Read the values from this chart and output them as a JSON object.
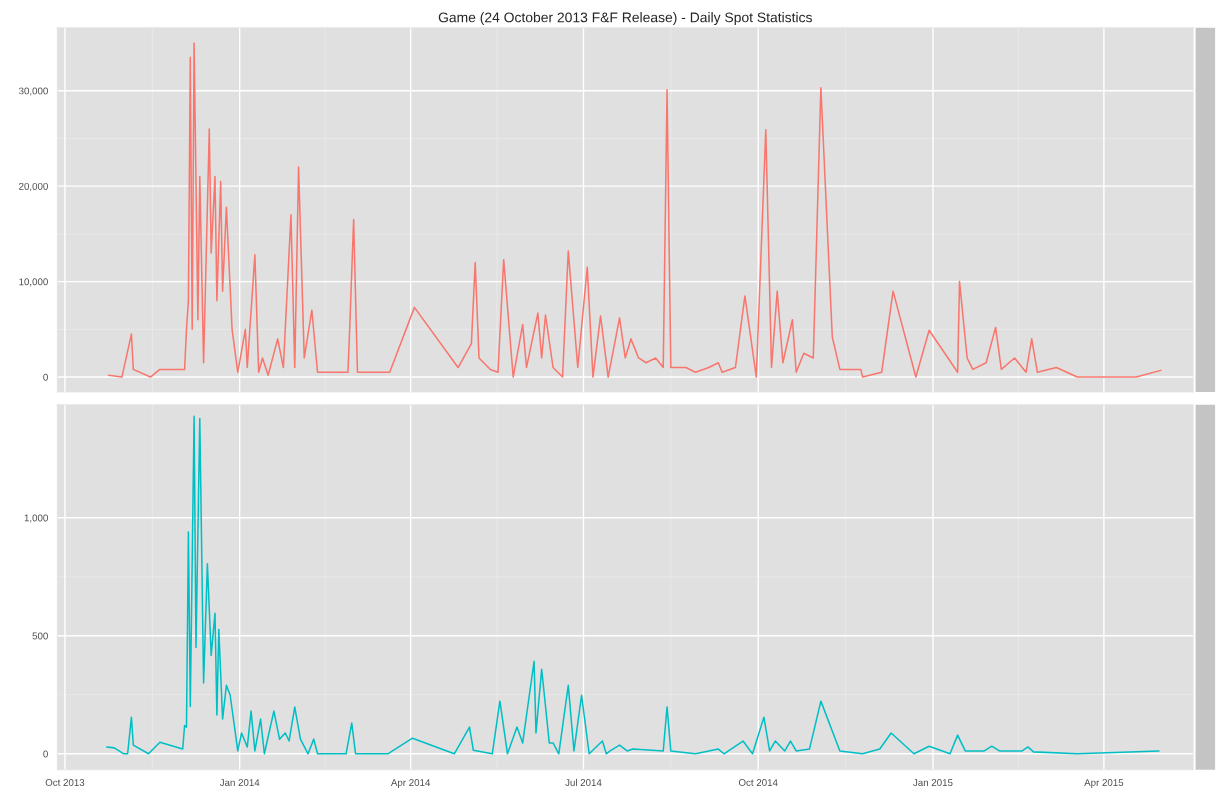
{
  "chart_data": [
    {
      "type": "line",
      "title": "Game (24 October 2013 F&F Release) - Daily Spot Statistics",
      "tick_labels": "y",
      "grid": true,
      "xlim": [
        "2013-09-27",
        "2015-05-18"
      ],
      "xticks": [
        {
          "value": "2013-10-01",
          "label": null
        },
        {
          "value": "2014-01-01",
          "label": null
        },
        {
          "value": "2014-04-01",
          "label": null
        },
        {
          "value": "2014-07-01",
          "label": null
        },
        {
          "value": "2014-10-01",
          "label": null
        },
        {
          "value": "2015-01-01",
          "label": null
        },
        {
          "value": "2015-04-01",
          "label": null
        }
      ],
      "ylim": [
        -1570,
        36600
      ],
      "yticks": [
        0,
        {
          "value": 10000,
          "label": "10,000"
        },
        {
          "value": 20000,
          "label": "20,000"
        },
        {
          "value": 30000,
          "label": "30,000"
        }
      ],
      "series": [
        {
          "color": "#f8766d",
          "x": [
            "2013-10-24",
            "2013-10-31",
            "2013-11-05",
            "2013-11-06",
            "2013-11-15",
            "2013-11-20",
            "2013-12-03",
            "2013-12-04",
            "2013-12-05",
            "2013-12-06",
            "2013-12-07",
            "2013-12-08",
            "2013-12-10",
            "2013-12-11",
            "2013-12-13",
            "2013-12-16",
            "2013-12-17",
            "2013-12-19",
            "2013-12-20",
            "2013-12-22",
            "2013-12-23",
            "2013-12-25",
            "2013-12-28",
            "2013-12-31",
            "2014-01-04",
            "2014-01-05",
            "2014-01-09",
            "2014-01-11",
            "2014-01-13",
            "2014-01-16",
            "2014-01-21",
            "2014-01-24",
            "2014-01-28",
            "2014-01-30",
            "2014-02-01",
            "2014-02-04",
            "2014-02-08",
            "2014-02-11",
            "2014-02-15",
            "2014-02-27",
            "2014-02-28",
            "2014-03-02",
            "2014-03-04",
            "2014-03-21",
            "2014-04-03",
            "2014-04-26",
            "2014-05-03",
            "2014-05-05",
            "2014-05-07",
            "2014-05-13",
            "2014-05-17",
            "2014-05-20",
            "2014-05-25",
            "2014-05-30",
            "2014-06-01",
            "2014-06-07",
            "2014-06-09",
            "2014-06-11",
            "2014-06-15",
            "2014-06-20",
            "2014-06-23",
            "2014-06-28",
            "2014-07-03",
            "2014-07-06",
            "2014-07-10",
            "2014-07-14",
            "2014-07-20",
            "2014-07-23",
            "2014-07-26",
            "2014-07-30",
            "2014-08-03",
            "2014-08-08",
            "2014-08-12",
            "2014-08-14",
            "2014-08-16",
            "2014-08-24",
            "2014-08-29",
            "2014-09-05",
            "2014-09-10",
            "2014-09-12",
            "2014-09-19",
            "2014-09-24",
            "2014-09-30",
            "2014-10-05",
            "2014-10-08",
            "2014-10-11",
            "2014-10-14",
            "2014-10-19",
            "2014-10-21",
            "2014-10-25",
            "2014-10-30",
            "2014-11-03",
            "2014-11-09",
            "2014-11-13",
            "2014-11-24",
            "2014-11-25",
            "2014-12-05",
            "2014-12-11",
            "2014-12-23",
            "2014-12-30",
            "2015-01-14",
            "2015-01-15",
            "2015-01-19",
            "2015-01-22",
            "2015-01-29",
            "2015-02-03",
            "2015-02-06",
            "2015-02-13",
            "2015-02-19",
            "2015-02-22",
            "2015-02-25",
            "2015-03-07",
            "2015-03-18",
            "2015-04-18",
            "2015-05-01"
          ],
          "values": [
            200,
            0,
            4500,
            800,
            0,
            800,
            800,
            5000,
            8000,
            33500,
            5000,
            35000,
            6000,
            21000,
            1500,
            26000,
            13000,
            21000,
            8000,
            20500,
            9000,
            17800,
            5000,
            500,
            5000,
            1000,
            12800,
            500,
            2000,
            200,
            4000,
            1000,
            17000,
            1000,
            22000,
            2000,
            7000,
            500,
            500,
            500,
            5500,
            16500,
            500,
            500,
            7300,
            1000,
            3500,
            12000,
            2000,
            800,
            500,
            12300,
            0,
            5500,
            1000,
            6700,
            2000,
            6500,
            1000,
            0,
            13200,
            1000,
            11500,
            0,
            6400,
            0,
            6200,
            2000,
            4000,
            2000,
            1500,
            2000,
            1000,
            30100,
            1000,
            1000,
            500,
            1000,
            1500,
            500,
            1000,
            8500,
            0,
            25900,
            1000,
            9000,
            1500,
            6000,
            500,
            2500,
            2000,
            30300,
            4200,
            800,
            800,
            0,
            500,
            9000,
            0,
            4900,
            500,
            10000,
            2000,
            800,
            1500,
            5200,
            800,
            2000,
            500,
            4000,
            500,
            1000,
            0,
            0,
            700
          ]
        }
      ]
    },
    {
      "type": "line",
      "grid": true,
      "xlim": [
        "2013-09-27",
        "2015-05-18"
      ],
      "xticks": [
        {
          "value": "2013-10-01",
          "label": "Oct 2013"
        },
        {
          "value": "2014-01-01",
          "label": "Jan 2014"
        },
        {
          "value": "2014-04-01",
          "label": "Apr 2014"
        },
        {
          "value": "2014-07-01",
          "label": "Jul 2014"
        },
        {
          "value": "2014-10-01",
          "label": "Oct 2014"
        },
        {
          "value": "2015-01-01",
          "label": "Jan 2015"
        },
        {
          "value": "2015-04-01",
          "label": "Apr 2015"
        }
      ],
      "ylim": [
        -68,
        1479
      ],
      "yticks": [
        0,
        500,
        {
          "value": 1000,
          "label": "1,000"
        }
      ],
      "series": [
        {
          "color": "#00bfc4",
          "x": [
            "2013-10-23",
            "2013-10-27",
            "2013-11-01",
            "2013-11-03",
            "2013-11-05",
            "2013-11-06",
            "2013-11-14",
            "2013-11-20",
            "2013-12-02",
            "2013-12-03",
            "2013-12-04",
            "2013-12-05",
            "2013-12-06",
            "2013-12-08",
            "2013-12-09",
            "2013-12-11",
            "2013-12-13",
            "2013-12-15",
            "2013-12-17",
            "2013-12-19",
            "2013-12-20",
            "2013-12-21",
            "2013-12-23",
            "2013-12-25",
            "2013-12-27",
            "2013-12-31",
            "2014-01-02",
            "2014-01-05",
            "2014-01-07",
            "2014-01-09",
            "2014-01-12",
            "2014-01-14",
            "2014-01-19",
            "2014-01-22",
            "2014-01-25",
            "2014-01-27",
            "2014-01-30",
            "2014-02-02",
            "2014-02-06",
            "2014-02-09",
            "2014-02-11",
            "2014-02-26",
            "2014-03-01",
            "2014-03-03",
            "2014-03-20",
            "2014-04-02",
            "2014-04-24",
            "2014-05-02",
            "2014-05-04",
            "2014-05-14",
            "2014-05-18",
            "2014-05-22",
            "2014-05-27",
            "2014-05-30",
            "2014-06-05",
            "2014-06-06",
            "2014-06-09",
            "2014-06-13",
            "2014-06-15",
            "2014-06-18",
            "2014-06-23",
            "2014-06-26",
            "2014-06-30",
            "2014-07-04",
            "2014-07-11",
            "2014-07-13",
            "2014-07-15",
            "2014-07-20",
            "2014-07-24",
            "2014-07-27",
            "2014-08-12",
            "2014-08-14",
            "2014-08-16",
            "2014-08-29",
            "2014-09-05",
            "2014-09-10",
            "2014-09-13",
            "2014-09-23",
            "2014-09-28",
            "2014-10-04",
            "2014-10-07",
            "2014-10-10",
            "2014-10-15",
            "2014-10-18",
            "2014-10-21",
            "2014-10-28",
            "2014-11-03",
            "2014-11-13",
            "2014-11-25",
            "2014-12-04",
            "2014-12-10",
            "2014-12-22",
            "2014-12-30",
            "2015-01-10",
            "2015-01-14",
            "2015-01-18",
            "2015-01-28",
            "2015-02-01",
            "2015-02-05",
            "2015-02-17",
            "2015-02-20",
            "2015-02-23",
            "2015-03-18",
            "2015-04-30"
          ],
          "values": [
            29,
            25,
            0,
            0,
            155,
            37,
            0,
            49,
            20,
            120,
            113,
            940,
            200,
            1430,
            450,
            1420,
            300,
            805,
            417,
            595,
            164,
            527,
            147,
            290,
            248,
            12,
            88,
            29,
            181,
            12,
            147,
            0,
            181,
            62,
            88,
            54,
            198,
            62,
            0,
            62,
            0,
            0,
            130,
            0,
            0,
            66,
            0,
            113,
            15,
            0,
            223,
            0,
            113,
            46,
            392,
            88,
            358,
            46,
            46,
            0,
            290,
            12,
            248,
            0,
            54,
            0,
            12,
            37,
            12,
            20,
            12,
            198,
            12,
            0,
            12,
            20,
            0,
            54,
            0,
            155,
            12,
            54,
            12,
            54,
            12,
            20,
            223,
            12,
            0,
            20,
            88,
            0,
            32,
            0,
            79,
            12,
            12,
            32,
            12,
            12,
            29,
            8,
            0,
            12
          ]
        }
      ]
    }
  ]
}
